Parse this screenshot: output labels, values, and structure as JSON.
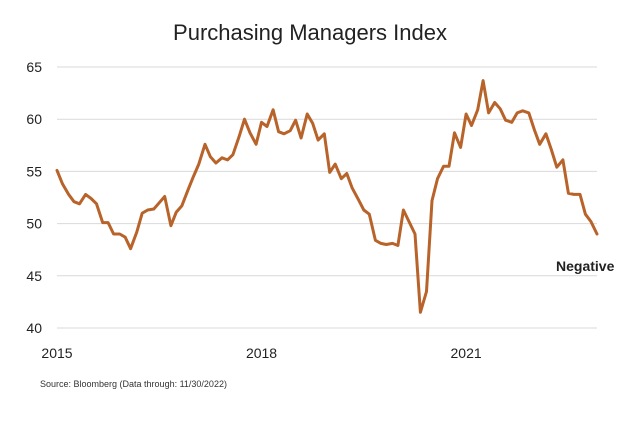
{
  "chart_data": {
    "type": "line",
    "title": "Purchasing Managers Index",
    "xlabel": "",
    "ylabel": "",
    "ylim": [
      40,
      65
    ],
    "yticks": [
      40,
      45,
      50,
      55,
      60,
      65
    ],
    "xlim": [
      2015.0,
      2022.92
    ],
    "xticks": [
      2015,
      2018,
      2021
    ],
    "grid": true,
    "annotation": "Negative",
    "source": "Source: Bloomberg (Data through: 11/30/2022)",
    "line_color": "#b8632a",
    "series": [
      {
        "x": [
          2015.0,
          2015.08,
          2015.17,
          2015.25,
          2015.33,
          2015.42,
          2015.5,
          2015.58,
          2015.67,
          2015.75,
          2015.83,
          2015.92,
          2016.0,
          2016.08,
          2016.17,
          2016.25,
          2016.33,
          2016.42,
          2016.5,
          2016.58,
          2016.67,
          2016.75,
          2016.83,
          2016.92,
          2017.0,
          2017.08,
          2017.17,
          2017.25,
          2017.33,
          2017.42,
          2017.5,
          2017.58,
          2017.67,
          2017.75,
          2017.83,
          2017.92,
          2018.0,
          2018.08,
          2018.17,
          2018.25,
          2018.33,
          2018.42,
          2018.5,
          2018.58,
          2018.67,
          2018.75,
          2018.83,
          2018.92,
          2019.0,
          2019.08,
          2019.17,
          2019.25,
          2019.33,
          2019.42,
          2019.5,
          2019.58,
          2019.67,
          2019.75,
          2019.83,
          2019.92,
          2020.0,
          2020.08,
          2020.17,
          2020.25,
          2020.33,
          2020.42,
          2020.5,
          2020.58,
          2020.67,
          2020.75,
          2020.83,
          2020.92,
          2021.0,
          2021.08,
          2021.17,
          2021.25,
          2021.33,
          2021.42,
          2021.5,
          2021.58,
          2021.67,
          2021.75,
          2021.83,
          2021.92,
          2022.0,
          2022.08,
          2022.17,
          2022.25,
          2022.33,
          2022.42,
          2022.5,
          2022.58,
          2022.67,
          2022.75,
          2022.83,
          2022.92
        ],
        "values": [
          55.1,
          53.8,
          52.8,
          52.1,
          51.9,
          52.8,
          52.4,
          51.9,
          50.1,
          50.1,
          49.0,
          49.0,
          48.7,
          47.6,
          49.2,
          51.0,
          51.3,
          51.4,
          52.0,
          52.6,
          49.8,
          51.1,
          51.7,
          53.2,
          54.5,
          55.7,
          57.6,
          56.4,
          55.8,
          56.3,
          56.1,
          56.6,
          58.3,
          60.0,
          58.7,
          57.6,
          59.7,
          59.3,
          60.9,
          58.8,
          58.6,
          58.9,
          59.9,
          58.2,
          60.5,
          59.6,
          58.0,
          58.6,
          54.9,
          55.7,
          54.3,
          54.8,
          53.4,
          52.3,
          51.3,
          50.9,
          48.4,
          48.1,
          48.0,
          48.1,
          47.9,
          51.3,
          50.1,
          49.0,
          41.5,
          43.5,
          52.2,
          54.3,
          55.5,
          55.5,
          58.7,
          57.3,
          60.5,
          59.4,
          60.9,
          63.7,
          60.6,
          61.6,
          61.0,
          59.9,
          59.7,
          60.6,
          60.8,
          60.6,
          59.0,
          57.6,
          58.6,
          57.1,
          55.4,
          56.1,
          52.9,
          52.8,
          52.8,
          50.9,
          50.2,
          49.0
        ]
      }
    ]
  }
}
